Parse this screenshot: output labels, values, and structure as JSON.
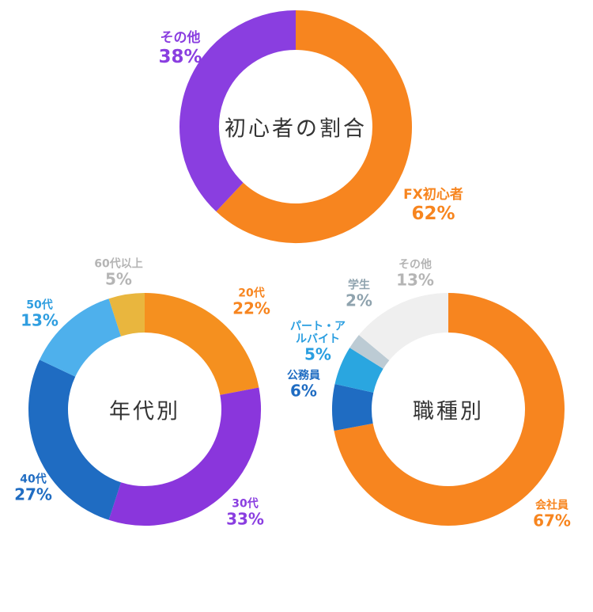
{
  "chart_data": [
    {
      "type": "donut",
      "title": "初心者の割合",
      "categories": [
        "FX初心者",
        "その他"
      ],
      "values": [
        62,
        38
      ],
      "value_labels": [
        "62%",
        "38%"
      ],
      "colors": [
        "#f7851f",
        "#8a3ee0"
      ],
      "label_colors": [
        "#f7851f",
        "#8a3ee0"
      ]
    },
    {
      "type": "donut",
      "title": "年代別",
      "categories": [
        "20代",
        "30代",
        "40代",
        "50代",
        "60代以上"
      ],
      "values": [
        22,
        33,
        27,
        13,
        5
      ],
      "value_labels": [
        "22%",
        "33%",
        "27%",
        "13%",
        "5%"
      ],
      "colors": [
        "#f5901f",
        "#8a36dc",
        "#1f6cc2",
        "#4eb0ec",
        "#e9b63e"
      ],
      "label_colors": [
        "#f7851f",
        "#8a3ee0",
        "#1f6cc2",
        "#2f9ee0",
        "#b5b5b5"
      ]
    },
    {
      "type": "donut",
      "title": "職種別",
      "categories": [
        "会社員",
        "公務員",
        "パート・アルバイト",
        "学生",
        "その他"
      ],
      "values": [
        67,
        6,
        5,
        2,
        13
      ],
      "value_labels": [
        "67%",
        "6%",
        "5%",
        "2%",
        "13%"
      ],
      "colors": [
        "#f7851f",
        "#1f6cc2",
        "#2aa6e0",
        "#bccbd4",
        "#efefef"
      ],
      "label_colors": [
        "#f7851f",
        "#1f6cc2",
        "#2a9ee0",
        "#8fa3ae",
        "#b5b5b5"
      ]
    }
  ]
}
